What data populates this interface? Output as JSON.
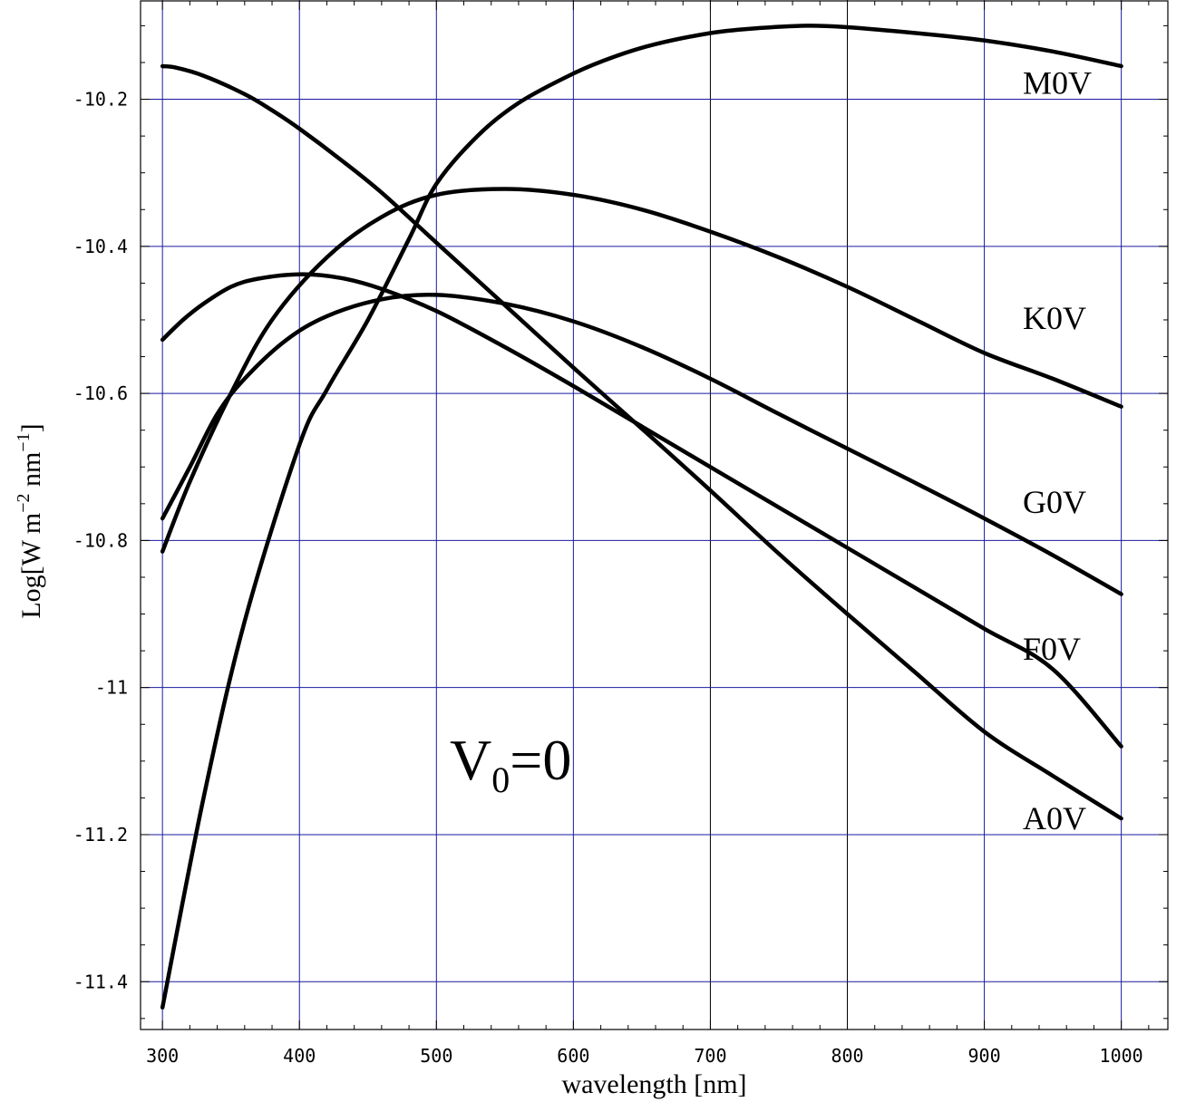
{
  "chart_data": {
    "type": "line",
    "xlabel": "wavelength [nm]",
    "ylabel": {
      "base": "Log[W m",
      "exp1": "−2",
      "mid": " nm",
      "exp2": "−1",
      "end": "]"
    },
    "xlim": [
      284,
      1034
    ],
    "ylim": [
      -11.465,
      -10.065
    ],
    "x_ticks": [
      300,
      400,
      500,
      600,
      700,
      800,
      900,
      1000
    ],
    "x_tick_labels": [
      "300",
      "400",
      "500",
      "600",
      "700",
      "800",
      "900",
      "1000"
    ],
    "y_ticks": [
      -10.2,
      -10.4,
      -10.6,
      -10.8,
      -11,
      -11.2,
      -11.4
    ],
    "y_tick_labels": [
      "-10.2",
      "-10.4",
      "-10.6",
      "-10.8",
      "-11",
      "-11.2",
      "-11.4"
    ],
    "grid": true,
    "grid_colors": {
      "blue": "#1a1aa0",
      "black": "#000000"
    },
    "line_color": "#000000",
    "annotation": {
      "main": "V",
      "sub": "0",
      "rest": "=0"
    },
    "series": [
      {
        "name": "M0V",
        "x": [
          300,
          330,
          360,
          400,
          420,
          450,
          480,
          500,
          530,
          560,
          600,
          630,
          660,
          700,
          730,
          770,
          800,
          850,
          900,
          950,
          1000
        ],
        "y": [
          -11.435,
          -11.15,
          -10.91,
          -10.67,
          -10.595,
          -10.5,
          -10.39,
          -10.315,
          -10.25,
          -10.205,
          -10.165,
          -10.142,
          -10.125,
          -10.11,
          -10.104,
          -10.1,
          -10.102,
          -10.11,
          -10.12,
          -10.135,
          -10.155
        ]
      },
      {
        "name": "K0V",
        "x": [
          300,
          320,
          350,
          380,
          420,
          460,
          500,
          550,
          600,
          650,
          700,
          750,
          800,
          850,
          900,
          950,
          1000
        ],
        "y": [
          -10.815,
          -10.72,
          -10.6,
          -10.5,
          -10.415,
          -10.36,
          -10.33,
          -10.322,
          -10.33,
          -10.35,
          -10.38,
          -10.415,
          -10.455,
          -10.5,
          -10.545,
          -10.58,
          -10.618
        ]
      },
      {
        "name": "G0V",
        "x": [
          300,
          320,
          340,
          360,
          390,
          420,
          460,
          500,
          550,
          600,
          650,
          700,
          750,
          800,
          850,
          900,
          950,
          1000
        ],
        "y": [
          -10.77,
          -10.7,
          -10.628,
          -10.58,
          -10.528,
          -10.495,
          -10.472,
          -10.466,
          -10.478,
          -10.502,
          -10.537,
          -10.58,
          -10.628,
          -10.675,
          -10.722,
          -10.77,
          -10.82,
          -10.873
        ]
      },
      {
        "name": "F0V",
        "x": [
          300,
          315,
          330,
          350,
          370,
          400,
          430,
          460,
          500,
          550,
          600,
          650,
          700,
          750,
          800,
          850,
          900,
          950,
          1000
        ],
        "y": [
          -10.527,
          -10.5,
          -10.478,
          -10.455,
          -10.444,
          -10.438,
          -10.443,
          -10.458,
          -10.488,
          -10.537,
          -10.59,
          -10.645,
          -10.7,
          -10.755,
          -10.81,
          -10.865,
          -10.92,
          -10.975,
          -11.08
        ]
      },
      {
        "name": "A0V",
        "x": [
          300,
          310,
          330,
          360,
          380,
          400,
          430,
          460,
          500,
          550,
          600,
          650,
          700,
          750,
          800,
          850,
          900,
          950,
          1000
        ],
        "y": [
          -10.155,
          -10.157,
          -10.168,
          -10.193,
          -10.215,
          -10.24,
          -10.282,
          -10.327,
          -10.395,
          -10.48,
          -10.565,
          -10.648,
          -10.732,
          -10.818,
          -10.9,
          -10.98,
          -11.06,
          -11.12,
          -11.178
        ]
      }
    ],
    "series_label_positions": [
      "right",
      "right",
      "right",
      "right",
      "right"
    ]
  }
}
